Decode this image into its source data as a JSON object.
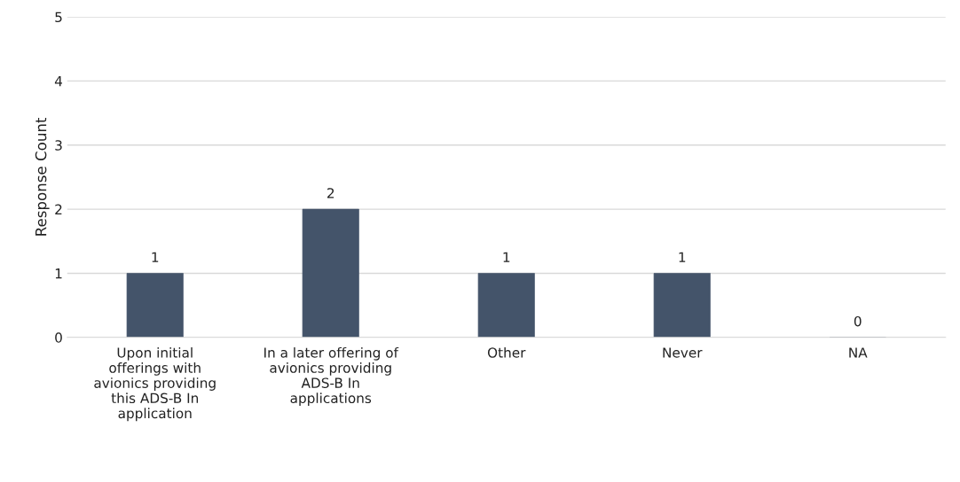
{
  "chart_data": {
    "type": "bar",
    "ylabel": "Response Count",
    "categories": [
      "Upon initial\nofferings with\navionics providing\nthis ADS-B In\napplication",
      "In a later offering of\navionics providing\nADS-B In\napplications",
      "Other",
      "Never",
      "NA"
    ],
    "values": [
      1,
      2,
      1,
      1,
      0
    ],
    "color": "#44546a",
    "ylim": [
      0,
      5
    ],
    "yticks": [
      0,
      1,
      2,
      3,
      4,
      5
    ],
    "grid": "y",
    "data_labels": true
  }
}
